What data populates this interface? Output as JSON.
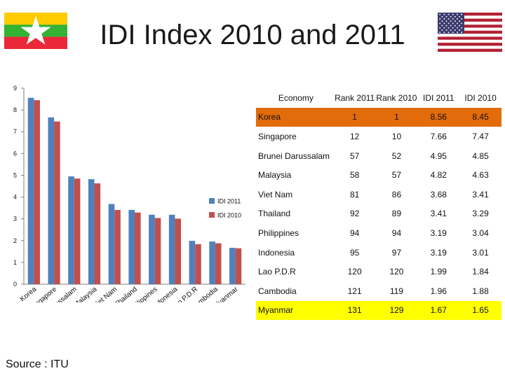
{
  "page": {
    "title": "IDI Index 2010 and 2011",
    "source": "Source : ITU"
  },
  "colors": {
    "idi2011": "#4f81bd",
    "idi2010": "#c0504d",
    "korea_row": "#e26b0a",
    "myanmar_row": "#ffff00",
    "flag_mm_yellow": "#fecb00",
    "flag_mm_green": "#34b233",
    "flag_mm_red": "#ea2839",
    "flag_us_red": "#b22234",
    "flag_us_blue": "#3c3b6e"
  },
  "table": {
    "headers": [
      "Economy",
      "Rank 2011",
      "Rank 2010",
      "IDI 2011",
      "IDI 2010"
    ],
    "rows": [
      {
        "economy": "Korea",
        "rank2011": "1",
        "rank2010": "1",
        "idi2011": "8.56",
        "idi2010": "8.45"
      },
      {
        "economy": "Singapore",
        "rank2011": "12",
        "rank2010": "10",
        "idi2011": "7.66",
        "idi2010": "7.47"
      },
      {
        "economy": "Brunei Darussalam",
        "rank2011": "57",
        "rank2010": "52",
        "idi2011": "4.95",
        "idi2010": "4.85"
      },
      {
        "economy": "Malaysia",
        "rank2011": "58",
        "rank2010": "57",
        "idi2011": "4.82",
        "idi2010": "4.63"
      },
      {
        "economy": "Viet Nam",
        "rank2011": "81",
        "rank2010": "86",
        "idi2011": "3.68",
        "idi2010": "3.41"
      },
      {
        "economy": "Thailand",
        "rank2011": "92",
        "rank2010": "89",
        "idi2011": "3.41",
        "idi2010": "3.29"
      },
      {
        "economy": "Philippines",
        "rank2011": "94",
        "rank2010": "94",
        "idi2011": "3.19",
        "idi2010": "3.04"
      },
      {
        "economy": "Indonesia",
        "rank2011": "95",
        "rank2010": "97",
        "idi2011": "3.19",
        "idi2010": "3.01"
      },
      {
        "economy": "Lao P.D.R",
        "rank2011": "120",
        "rank2010": "120",
        "idi2011": "1.99",
        "idi2010": "1.84"
      },
      {
        "economy": "Cambodia",
        "rank2011": "121",
        "rank2010": "119",
        "idi2011": "1.96",
        "idi2010": "1.88"
      },
      {
        "economy": "Myanmar",
        "rank2011": "131",
        "rank2010": "129",
        "idi2011": "1.67",
        "idi2010": "1.65"
      }
    ]
  },
  "chart_data": {
    "type": "bar",
    "categories": [
      "Korea",
      "Singapore",
      "Brunei Darussalam",
      "Malaysia",
      "Viet Nam",
      "Thailand",
      "Philippines",
      "Indonesia",
      "Lao P.D.R",
      "Cambodia",
      "Myanmar"
    ],
    "series": [
      {
        "name": "IDI 2011",
        "values": [
          8.56,
          7.66,
          4.95,
          4.82,
          3.68,
          3.41,
          3.19,
          3.19,
          1.99,
          1.96,
          1.67
        ]
      },
      {
        "name": "IDI 2010",
        "values": [
          8.45,
          7.47,
          4.85,
          4.63,
          3.41,
          3.29,
          3.04,
          3.01,
          1.84,
          1.88,
          1.65
        ]
      }
    ],
    "yticks": [
      "0",
      "1",
      "2",
      "3",
      "4",
      "5",
      "6",
      "7",
      "8",
      "9"
    ],
    "ylim": [
      0,
      9
    ],
    "grid": false,
    "legend_position": "right"
  }
}
